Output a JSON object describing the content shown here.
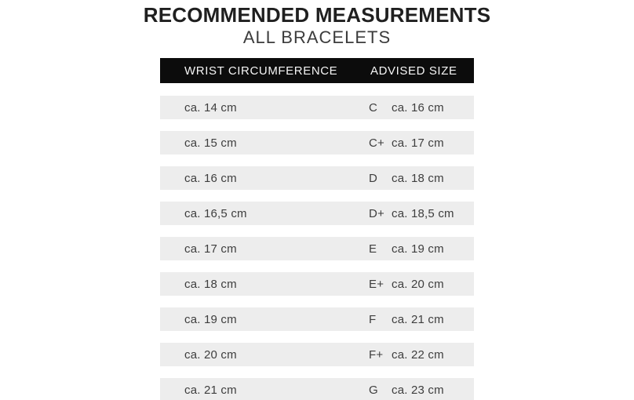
{
  "header": {
    "title": "RECOMMENDED MEASUREMENTS",
    "subtitle": "ALL BRACELETS"
  },
  "table": {
    "columns": {
      "wrist": "WRIST CIRCUMFERENCE",
      "advised": "ADVISED SIZE"
    },
    "rows": [
      {
        "wrist": "ca. 14 cm",
        "size": "C",
        "advised": "ca. 16 cm"
      },
      {
        "wrist": "ca. 15 cm",
        "size": "C+",
        "advised": "ca. 17 cm"
      },
      {
        "wrist": "ca. 16 cm",
        "size": "D",
        "advised": "ca. 18 cm"
      },
      {
        "wrist": "ca. 16,5 cm",
        "size": "D+",
        "advised": "ca. 18,5 cm"
      },
      {
        "wrist": "ca. 17 cm",
        "size": "E",
        "advised": "ca. 19 cm"
      },
      {
        "wrist": "ca. 18 cm",
        "size": "E+",
        "advised": "ca. 20 cm"
      },
      {
        "wrist": "ca. 19 cm",
        "size": "F",
        "advised": "ca. 21 cm"
      },
      {
        "wrist": "ca. 20 cm",
        "size": "F+",
        "advised": "ca. 22 cm"
      },
      {
        "wrist": "ca. 21 cm",
        "size": "G",
        "advised": "ca. 23 cm"
      }
    ]
  },
  "colors": {
    "header_bar": "#0c0c0c",
    "header_text": "#f5f5f5",
    "row_background": "#ededed",
    "row_text": "#3e3e3e",
    "title_text": "#1f1f1f",
    "subtitle_text": "#3c3c3c",
    "page_background": "#ffffff"
  }
}
